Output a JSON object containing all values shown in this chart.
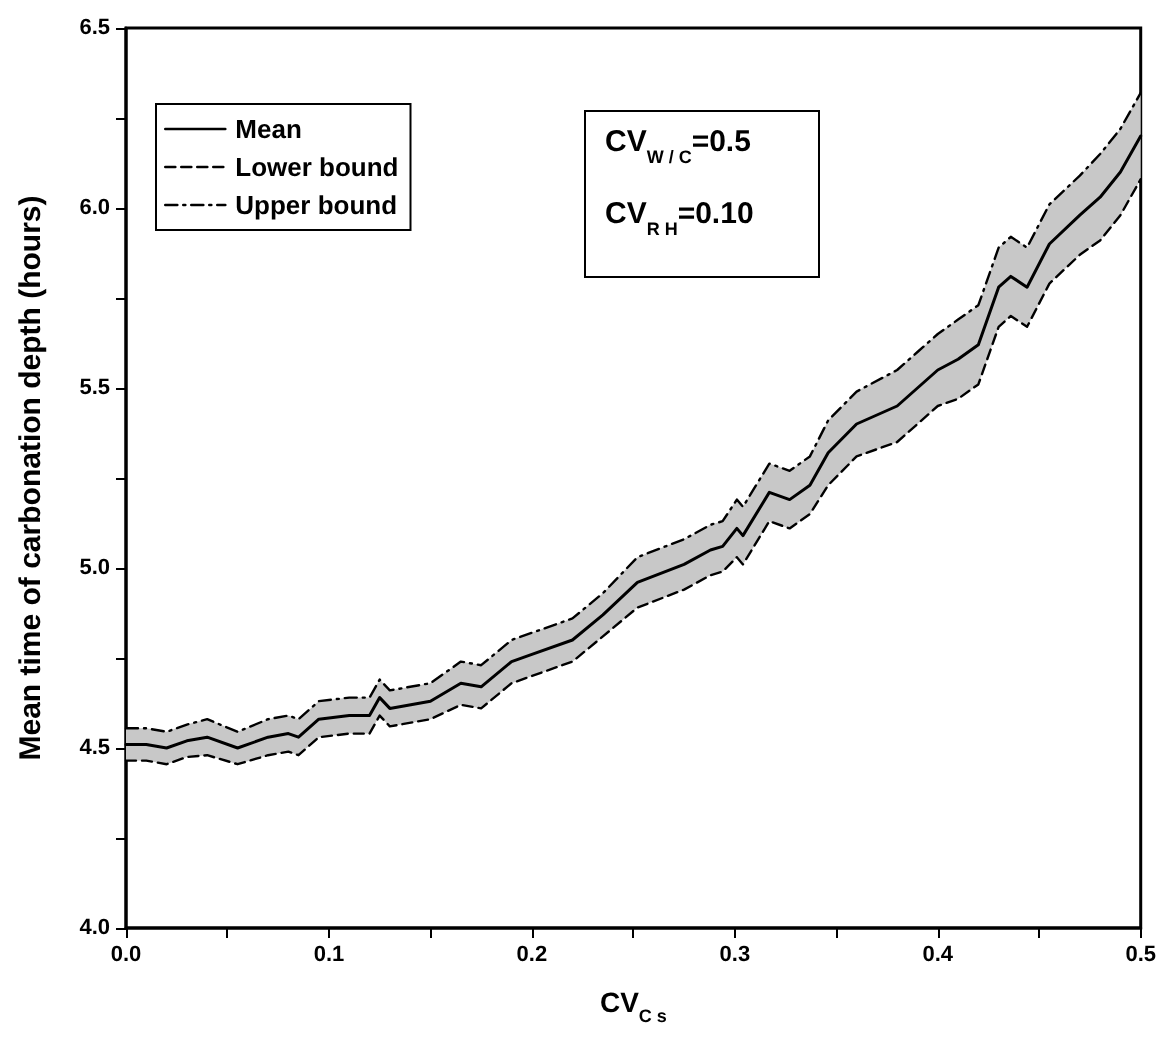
{
  "chart_data": {
    "type": "line",
    "xlabel": "CV$_{C s}$",
    "ylabel": "Mean time of carbonation depth (hours)",
    "x": [
      0,
      0.01,
      0.02,
      0.03,
      0.04,
      0.055,
      0.07,
      0.08,
      0.085,
      0.095,
      0.11,
      0.12,
      0.125,
      0.13,
      0.15,
      0.165,
      0.175,
      0.19,
      0.2,
      0.22,
      0.235,
      0.252,
      0.275,
      0.288,
      0.294,
      0.301,
      0.304,
      0.317,
      0.327,
      0.337,
      0.346,
      0.36,
      0.38,
      0.39,
      0.4,
      0.41,
      0.42,
      0.43,
      0.436,
      0.444,
      0.455,
      0.47,
      0.48,
      0.49,
      0.5
    ],
    "series": [
      {
        "name": "Mean",
        "color": "#000000",
        "line_style": "solid",
        "values": [
          4.51,
          4.51,
          4.5,
          4.52,
          4.53,
          4.5,
          4.53,
          4.54,
          4.53,
          4.58,
          4.59,
          4.59,
          4.64,
          4.61,
          4.63,
          4.68,
          4.67,
          4.74,
          4.76,
          4.8,
          4.87,
          4.96,
          5.01,
          5.05,
          5.06,
          5.11,
          5.09,
          5.21,
          5.19,
          5.23,
          5.32,
          5.4,
          5.45,
          5.5,
          5.55,
          5.58,
          5.62,
          5.78,
          5.81,
          5.78,
          5.9,
          5.98,
          6.03,
          6.1,
          6.2
        ],
        "lower": [
          4.465,
          4.465,
          4.455,
          4.475,
          4.48,
          4.455,
          4.48,
          4.49,
          4.48,
          4.53,
          4.54,
          4.54,
          4.59,
          4.56,
          4.58,
          4.62,
          4.61,
          4.68,
          4.7,
          4.74,
          4.81,
          4.89,
          4.94,
          4.98,
          4.99,
          5.03,
          5.01,
          5.13,
          5.11,
          5.15,
          5.23,
          5.31,
          5.35,
          5.4,
          5.45,
          5.47,
          5.51,
          5.67,
          5.7,
          5.67,
          5.79,
          5.87,
          5.91,
          5.98,
          6.08
        ],
        "upper": [
          4.555,
          4.555,
          4.545,
          4.565,
          4.58,
          4.545,
          4.58,
          4.59,
          4.58,
          4.63,
          4.64,
          4.64,
          4.69,
          4.66,
          4.68,
          4.74,
          4.73,
          4.8,
          4.82,
          4.86,
          4.93,
          5.03,
          5.08,
          5.12,
          5.13,
          5.19,
          5.17,
          5.29,
          5.27,
          5.31,
          5.41,
          5.49,
          5.55,
          5.6,
          5.65,
          5.69,
          5.73,
          5.89,
          5.92,
          5.89,
          6.01,
          6.09,
          6.15,
          6.22,
          6.32
        ]
      },
      {
        "name": "Lower bound",
        "color": "#000000",
        "line_style": "dashed",
        "values": [
          4.465,
          4.465,
          4.455,
          4.475,
          4.48,
          4.455,
          4.48,
          4.49,
          4.48,
          4.53,
          4.54,
          4.54,
          4.59,
          4.56,
          4.58,
          4.62,
          4.61,
          4.68,
          4.7,
          4.74,
          4.81,
          4.89,
          4.94,
          4.98,
          4.99,
          5.03,
          5.01,
          5.13,
          5.11,
          5.15,
          5.23,
          5.31,
          5.35,
          5.4,
          5.45,
          5.47,
          5.51,
          5.67,
          5.7,
          5.67,
          5.79,
          5.87,
          5.91,
          5.98,
          6.08
        ]
      },
      {
        "name": "Upper bound",
        "color": "#000000",
        "line_style": "dashdot",
        "values": [
          4.555,
          4.555,
          4.545,
          4.565,
          4.58,
          4.545,
          4.58,
          4.59,
          4.58,
          4.63,
          4.64,
          4.64,
          4.69,
          4.66,
          4.68,
          4.74,
          4.73,
          4.8,
          4.82,
          4.86,
          4.93,
          5.03,
          5.08,
          5.12,
          5.13,
          5.19,
          5.17,
          5.29,
          5.27,
          5.31,
          5.41,
          5.49,
          5.55,
          5.6,
          5.65,
          5.69,
          5.73,
          5.89,
          5.92,
          5.89,
          6.01,
          6.09,
          6.15,
          6.22,
          6.32
        ]
      }
    ],
    "xlim": [
      0,
      0.5
    ],
    "xticks": [
      {
        "value": 0,
        "label": "0.0"
      },
      0.1,
      0.2,
      0.3,
      0.4,
      0.5
    ],
    "ylim": [
      4,
      6.5
    ],
    "yticks": [
      {
        "value": 4,
        "label": "4.0"
      },
      4.5,
      {
        "value": 5,
        "label": "5.0"
      },
      5.5,
      {
        "value": 6,
        "label": "6.0"
      },
      6.5
    ],
    "annotations": [
      "CV$_{W / C}$=0.5",
      "CV$_{R H}$=0.10"
    ],
    "legend": "top left",
    "grid": false,
    "marker": "none"
  }
}
